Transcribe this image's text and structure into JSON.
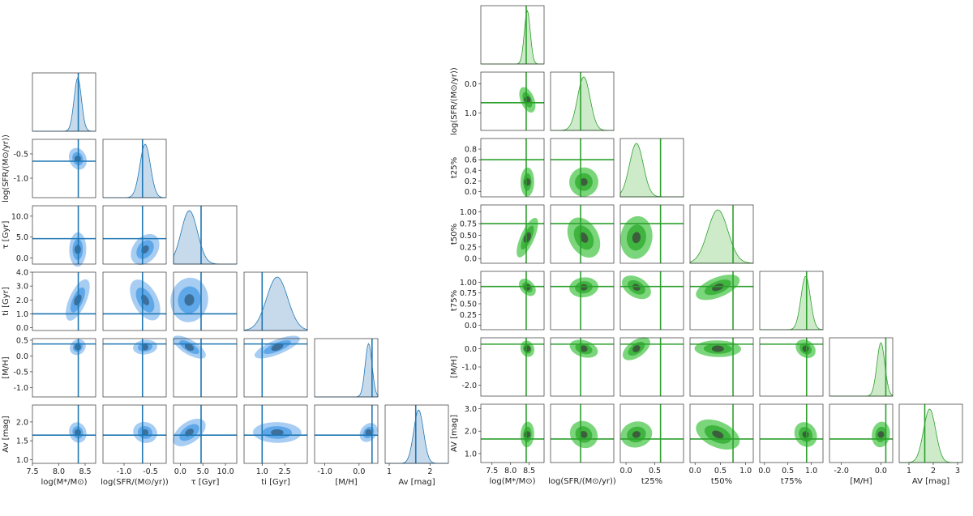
{
  "chart_data": [
    {
      "type": "corner",
      "id": "left",
      "color": "#1f77b4",
      "contour_colors": [
        "#a7cdf3",
        "#5ea8ea",
        "#3c6f9a"
      ],
      "marginal_fill": "#c7daec",
      "params": [
        {
          "label": "log(M*/M⊙)",
          "range": [
            7.5,
            8.7
          ],
          "ticks": [
            "7.5",
            "8.0",
            "8.5"
          ],
          "truth": 8.37,
          "mode": 8.36,
          "sd": 0.07
        },
        {
          "label": "log(SFR/(M⊙/yr))",
          "range": [
            -1.4,
            -0.2
          ],
          "ticks": [
            "-1.0",
            "-0.5"
          ],
          "truth": -0.65,
          "mode": -0.6,
          "sd": 0.1
        },
        {
          "label": "τ [Gyr]",
          "range": [
            -1.5,
            12.5
          ],
          "ticks": [
            "0.0",
            "5.0",
            "10.0"
          ],
          "truth": 4.6,
          "mode": 2.0,
          "sd": 1.8
        },
        {
          "label": "t_i [Gyr]",
          "range": [
            -0.2,
            4.0
          ],
          "ticks": [
            "0.0",
            "1.0",
            "2.0",
            "3.0",
            "4.0"
          ],
          "tick_values": [
            0,
            1,
            2,
            3,
            4
          ],
          "x_ticks": [
            "1.0",
            "2.5"
          ],
          "x_tick_values": [
            1,
            2.5
          ],
          "truth": 1.0,
          "mode": 2.0,
          "sd": 0.7
        },
        {
          "label": "[M/H]",
          "range": [
            -1.3,
            0.55
          ],
          "ticks": [
            "-1.0",
            "-0.5",
            "0.0",
            "0.5"
          ],
          "x_ticks": [
            "-1.0",
            "0.0"
          ],
          "truth": 0.38,
          "mode": 0.28,
          "sd": 0.1
        },
        {
          "label": "Av [mag]",
          "range": [
            0.9,
            2.45
          ],
          "ticks": [
            "1.0",
            "1.5",
            "2.0"
          ],
          "x_ticks": [
            "1",
            "2"
          ],
          "truth": 1.65,
          "mode": 1.72,
          "sd": 0.12
        }
      ]
    },
    {
      "type": "corner",
      "id": "right",
      "color": "#2ca02c",
      "contour_colors": [
        "#7bd67b",
        "#3fb53f",
        "#3d5e3d"
      ],
      "marginal_fill": "#cdebc9",
      "params": [
        {
          "label": "log(M*/M⊙)",
          "range": [
            7.2,
            8.9
          ],
          "ticks": [
            "7.5",
            "8.0",
            "8.5"
          ],
          "truth": 8.42,
          "mode": 8.45,
          "sd": 0.08
        },
        {
          "label": "log(SFR/(M⊙/yr))",
          "range": [
            1.6,
            -0.4
          ],
          "ticks": [
            "0.0",
            "1.0"
          ],
          "y_ticks": [
            "0.0",
            "1.0"
          ],
          "x_ticks": [
            "-0.5"
          ],
          "truth": 0.65,
          "mode": 0.55,
          "sd": 0.2
        },
        {
          "label": "t25%",
          "range": [
            -0.1,
            1.0
          ],
          "ticks": [
            "0.0",
            "0.2",
            "0.4",
            "0.6",
            "0.8"
          ],
          "x_ticks": [
            "0.0",
            "0.5"
          ],
          "truth": 0.6,
          "mode": 0.18,
          "sd": 0.12
        },
        {
          "label": "t50%",
          "range": [
            -0.1,
            1.15
          ],
          "ticks": [
            "0.0",
            "0.5",
            "1.0"
          ],
          "y_ticks": [
            "0.0",
            "0.25",
            "0.50",
            "0.75",
            "1.00"
          ],
          "truth": 0.75,
          "mode": 0.45,
          "sd": 0.2
        },
        {
          "label": "t75%",
          "range": [
            -0.1,
            1.25
          ],
          "ticks": [
            "0.0",
            "0.5",
            "1.0"
          ],
          "y_ticks": [
            "0.0",
            "0.25",
            "0.50",
            "0.75",
            "1.00"
          ],
          "truth": 0.9,
          "mode": 0.88,
          "sd": 0.1
        },
        {
          "label": "[M/H]",
          "range": [
            -2.6,
            0.6
          ],
          "ticks": [
            "-2.0",
            "-1.0",
            "0.0"
          ],
          "x_ticks": [
            "-2.0",
            "0.0"
          ],
          "truth": 0.25,
          "mode": 0.0,
          "sd": 0.2
        },
        {
          "label": "A_V [mag]",
          "range": [
            0.6,
            3.2
          ],
          "ticks": [
            "1.0",
            "2.0",
            "3.0"
          ],
          "x_ticks": [
            "1",
            "2",
            "3"
          ],
          "truth": 1.65,
          "mode": 1.85,
          "sd": 0.25
        }
      ]
    }
  ],
  "labels_display": {
    "left": [
      "log(M*/M⊙)",
      "log(SFR/(M⊙/yr))",
      "τ [Gyr]",
      "ti [Gyr]",
      "[M/H]",
      "Av [mag]"
    ],
    "right": [
      "log(M*/M⊙)",
      "log(SFR/(M⊙/yr))",
      "t25%",
      "t50%",
      "t75%",
      "[M/H]",
      "AV [mag]"
    ]
  }
}
